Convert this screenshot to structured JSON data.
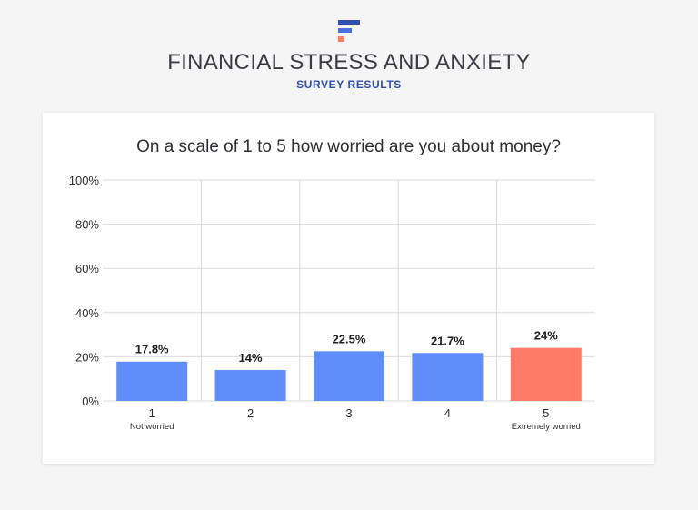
{
  "header": {
    "title": "FINANCIAL STRESS AND ANXIETY",
    "subtitle": "SURVEY RESULTS"
  },
  "colors": {
    "logo_dark": "#2f4fb3",
    "logo_mid": "#4a6fe0",
    "logo_accent": "#ff7b61",
    "bar_default": "#5f8dfa",
    "bar_highlight": "#ff7b65",
    "grid": "#d9d9d9",
    "text": "#2f2f33"
  },
  "chart_data": {
    "type": "bar",
    "title": "On a scale of 1 to 5 how worried are you about money?",
    "categories": [
      "1",
      "2",
      "3",
      "4",
      "5"
    ],
    "category_sublabels": [
      "Not worried",
      "",
      "",
      "",
      "Extremely worried"
    ],
    "values": [
      17.8,
      14,
      22.5,
      21.7,
      24
    ],
    "value_labels": [
      "17.8%",
      "14%",
      "22.5%",
      "21.7%",
      "24%"
    ],
    "highlight_index": 4,
    "ylim": [
      0,
      100
    ],
    "yticks": [
      0,
      20,
      40,
      60,
      80,
      100
    ],
    "ytick_labels": [
      "0%",
      "20%",
      "40%",
      "60%",
      "80%",
      "100%"
    ],
    "grid": true,
    "xlabel": "",
    "ylabel": ""
  }
}
